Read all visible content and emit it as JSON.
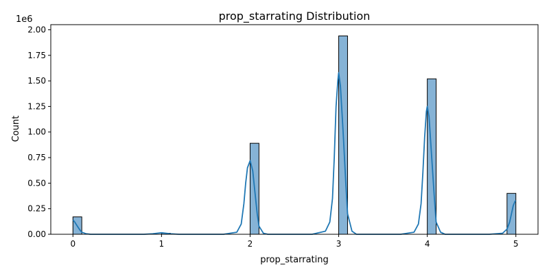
{
  "chart_data": {
    "type": "bar",
    "title": "prop_starrating Distribution",
    "xlabel": "prop_starrating",
    "ylabel": "Count",
    "y_offset_label": "1e6",
    "y_scale": 1000000,
    "xlim": [
      -0.25,
      5.25
    ],
    "ylim": [
      0,
      2.05
    ],
    "x_ticks": [
      0,
      1,
      2,
      3,
      4,
      5
    ],
    "x_tick_labels": [
      "0",
      "1",
      "2",
      "3",
      "4",
      "5"
    ],
    "y_ticks": [
      0,
      0.25,
      0.5,
      0.75,
      1.0,
      1.25,
      1.5,
      1.75,
      2.0
    ],
    "y_tick_labels": [
      "0.00",
      "0.25",
      "0.50",
      "0.75",
      "1.00",
      "1.25",
      "1.50",
      "1.75",
      "2.00"
    ],
    "grid": false,
    "bin_width": 0.1,
    "bars": [
      {
        "x0": 0.0,
        "x1": 0.1,
        "value": 0.17
      },
      {
        "x0": 1.0,
        "x1": 1.1,
        "value": 0.01
      },
      {
        "x0": 2.0,
        "x1": 2.1,
        "value": 0.89
      },
      {
        "x0": 3.0,
        "x1": 3.1,
        "value": 1.94
      },
      {
        "x0": 4.0,
        "x1": 4.1,
        "value": 1.52
      },
      {
        "x0": 4.9,
        "x1": 5.0,
        "value": 0.4
      }
    ],
    "kde": {
      "x": [
        0.0,
        0.02,
        0.05,
        0.08,
        0.1,
        0.15,
        0.2,
        0.3,
        0.8,
        0.9,
        0.95,
        1.0,
        1.05,
        1.1,
        1.2,
        1.7,
        1.85,
        1.9,
        1.93,
        1.95,
        1.97,
        2.0,
        2.03,
        2.05,
        2.08,
        2.1,
        2.15,
        2.2,
        2.3,
        2.7,
        2.85,
        2.9,
        2.93,
        2.95,
        2.97,
        2.99,
        3.0,
        3.02,
        3.05,
        3.08,
        3.1,
        3.15,
        3.2,
        3.3,
        3.7,
        3.85,
        3.9,
        3.93,
        3.95,
        3.97,
        3.99,
        4.0,
        4.02,
        4.05,
        4.08,
        4.1,
        4.15,
        4.2,
        4.3,
        4.7,
        4.85,
        4.9,
        4.93,
        4.95,
        4.97,
        4.99,
        5.0
      ],
      "y": [
        0.14,
        0.12,
        0.08,
        0.04,
        0.02,
        0.005,
        0.0,
        0.0,
        0.0,
        0.005,
        0.01,
        0.015,
        0.01,
        0.005,
        0.0,
        0.0,
        0.02,
        0.1,
        0.3,
        0.5,
        0.65,
        0.72,
        0.62,
        0.45,
        0.2,
        0.08,
        0.01,
        0.0,
        0.0,
        0.0,
        0.03,
        0.12,
        0.35,
        0.75,
        1.25,
        1.5,
        1.58,
        1.45,
        1.0,
        0.5,
        0.2,
        0.03,
        0.0,
        0.0,
        0.0,
        0.02,
        0.1,
        0.3,
        0.6,
        0.95,
        1.2,
        1.25,
        1.15,
        0.75,
        0.35,
        0.12,
        0.02,
        0.0,
        0.0,
        0.0,
        0.01,
        0.05,
        0.12,
        0.2,
        0.28,
        0.32,
        0.33
      ]
    },
    "colors": {
      "bar_fill": "#86b3d6",
      "bar_edge": "#000000",
      "kde_line": "#1f77b4"
    }
  }
}
